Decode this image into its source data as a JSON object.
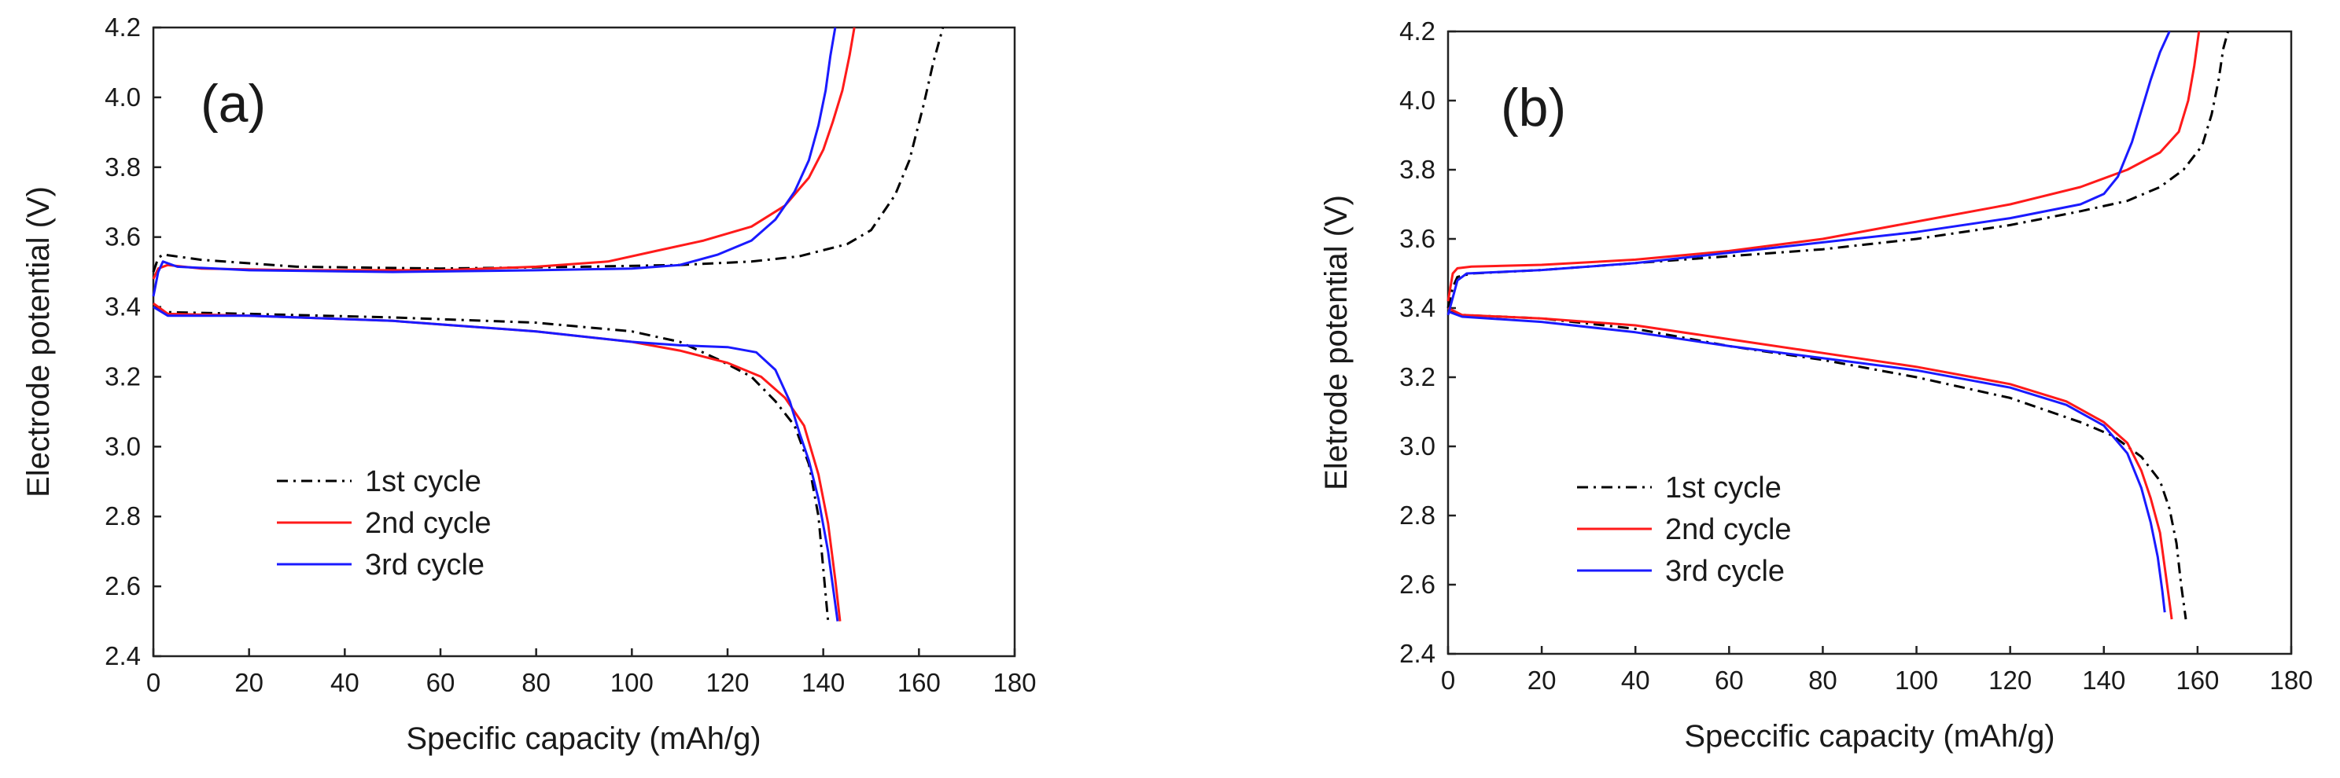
{
  "figure": {
    "description_free": true
  },
  "chart_data": [
    {
      "type": "line",
      "panel_label": "(a)",
      "title": "",
      "xlabel": "Specific capacity (mAh/g)",
      "ylabel": "Electrode potential (V)",
      "xlim": [
        0,
        180
      ],
      "ylim": [
        2.4,
        4.2
      ],
      "xticks": [
        "0",
        "20",
        "40",
        "60",
        "80",
        "100",
        "120",
        "140",
        "160",
        "180"
      ],
      "yticks": [
        "2.4",
        "2.6",
        "2.8",
        "3.0",
        "3.2",
        "3.4",
        "3.6",
        "3.8",
        "4.0",
        "4.2"
      ],
      "grid": false,
      "legend_position": "bottom-left",
      "series": [
        {
          "name": "1st cycle",
          "color": "#000000",
          "dash": "dashdot",
          "charge": [
            [
              0,
              3.5
            ],
            [
              1,
              3.54
            ],
            [
              2,
              3.55
            ],
            [
              10,
              3.535
            ],
            [
              30,
              3.515
            ],
            [
              60,
              3.51
            ],
            [
              90,
              3.515
            ],
            [
              110,
              3.52
            ],
            [
              125,
              3.53
            ],
            [
              135,
              3.545
            ],
            [
              145,
              3.58
            ],
            [
              150,
              3.62
            ],
            [
              155,
              3.72
            ],
            [
              158,
              3.82
            ],
            [
              161,
              3.98
            ],
            [
              163,
              4.1
            ],
            [
              165,
              4.2
            ]
          ],
          "discharge": [
            [
              0,
              3.4
            ],
            [
              3,
              3.385
            ],
            [
              20,
              3.38
            ],
            [
              50,
              3.37
            ],
            [
              80,
              3.355
            ],
            [
              100,
              3.33
            ],
            [
              110,
              3.3
            ],
            [
              118,
              3.25
            ],
            [
              125,
              3.2
            ],
            [
              130,
              3.13
            ],
            [
              134,
              3.06
            ],
            [
              137,
              2.95
            ],
            [
              139,
              2.8
            ],
            [
              140,
              2.65
            ],
            [
              141,
              2.5
            ]
          ]
        },
        {
          "name": "2nd cycle",
          "color": "#ff1a1a",
          "dash": "solid",
          "charge": [
            [
              0,
              3.48
            ],
            [
              1,
              3.51
            ],
            [
              3,
              3.52
            ],
            [
              10,
              3.51
            ],
            [
              30,
              3.505
            ],
            [
              60,
              3.505
            ],
            [
              80,
              3.515
            ],
            [
              95,
              3.53
            ],
            [
              105,
              3.56
            ],
            [
              115,
              3.59
            ],
            [
              125,
              3.63
            ],
            [
              132,
              3.69
            ],
            [
              137,
              3.77
            ],
            [
              140,
              3.85
            ],
            [
              142,
              3.93
            ],
            [
              144,
              4.02
            ],
            [
              145.5,
              4.12
            ],
            [
              146.5,
              4.2
            ]
          ],
          "discharge": [
            [
              0,
              3.41
            ],
            [
              3,
              3.38
            ],
            [
              20,
              3.375
            ],
            [
              50,
              3.36
            ],
            [
              80,
              3.33
            ],
            [
              100,
              3.3
            ],
            [
              110,
              3.275
            ],
            [
              120,
              3.24
            ],
            [
              127,
              3.2
            ],
            [
              132,
              3.14
            ],
            [
              136,
              3.06
            ],
            [
              139,
              2.92
            ],
            [
              141,
              2.78
            ],
            [
              142.5,
              2.62
            ],
            [
              143.5,
              2.5
            ]
          ]
        },
        {
          "name": "3rd cycle",
          "color": "#1a1aff",
          "dash": "solid",
          "charge": [
            [
              0,
              3.43
            ],
            [
              1,
              3.5
            ],
            [
              2,
              3.53
            ],
            [
              5,
              3.515
            ],
            [
              20,
              3.505
            ],
            [
              50,
              3.5
            ],
            [
              80,
              3.505
            ],
            [
              100,
              3.51
            ],
            [
              110,
              3.52
            ],
            [
              118,
              3.55
            ],
            [
              125,
              3.59
            ],
            [
              130,
              3.65
            ],
            [
              134,
              3.73
            ],
            [
              137,
              3.82
            ],
            [
              139,
              3.92
            ],
            [
              140.5,
              4.02
            ],
            [
              141.5,
              4.12
            ],
            [
              142.5,
              4.2
            ]
          ],
          "discharge": [
            [
              0,
              3.4
            ],
            [
              3,
              3.375
            ],
            [
              20,
              3.375
            ],
            [
              50,
              3.36
            ],
            [
              80,
              3.33
            ],
            [
              100,
              3.3
            ],
            [
              110,
              3.29
            ],
            [
              120,
              3.285
            ],
            [
              126,
              3.27
            ],
            [
              130,
              3.22
            ],
            [
              133,
              3.13
            ],
            [
              135,
              3.04
            ],
            [
              137,
              2.96
            ],
            [
              139,
              2.85
            ],
            [
              141,
              2.7
            ],
            [
              142.5,
              2.55
            ],
            [
              143,
              2.5
            ]
          ]
        }
      ]
    },
    {
      "type": "line",
      "panel_label": "(b)",
      "title": "",
      "xlabel": "Speccific capacity (mAh/g)",
      "ylabel": "Eletrode potential (V)",
      "xlim": [
        0,
        180
      ],
      "ylim": [
        2.4,
        4.2
      ],
      "xticks": [
        "0",
        "20",
        "40",
        "60",
        "80",
        "100",
        "120",
        "140",
        "160",
        "180"
      ],
      "yticks": [
        "2.4",
        "2.6",
        "2.8",
        "3.0",
        "3.2",
        "3.4",
        "3.6",
        "3.8",
        "4.0",
        "4.2"
      ],
      "grid": false,
      "legend_position": "bottom-left",
      "series": [
        {
          "name": "1st cycle",
          "color": "#000000",
          "dash": "dashdot",
          "charge": [
            [
              0,
              3.4
            ],
            [
              1,
              3.46
            ],
            [
              2,
              3.49
            ],
            [
              5,
              3.5
            ],
            [
              20,
              3.51
            ],
            [
              40,
              3.53
            ],
            [
              60,
              3.55
            ],
            [
              80,
              3.57
            ],
            [
              100,
              3.6
            ],
            [
              120,
              3.64
            ],
            [
              135,
              3.68
            ],
            [
              145,
              3.71
            ],
            [
              152,
              3.75
            ],
            [
              157,
              3.8
            ],
            [
              161,
              3.87
            ],
            [
              163,
              3.96
            ],
            [
              164.5,
              4.06
            ],
            [
              165.5,
              4.15
            ],
            [
              166.5,
              4.2
            ]
          ],
          "discharge": [
            [
              0,
              3.39
            ],
            [
              3,
              3.38
            ],
            [
              20,
              3.37
            ],
            [
              40,
              3.34
            ],
            [
              60,
              3.29
            ],
            [
              80,
              3.25
            ],
            [
              100,
              3.2
            ],
            [
              120,
              3.14
            ],
            [
              135,
              3.07
            ],
            [
              142,
              3.03
            ],
            [
              148,
              2.97
            ],
            [
              152,
              2.9
            ],
            [
              154,
              2.82
            ],
            [
              155.5,
              2.72
            ],
            [
              156.5,
              2.6
            ],
            [
              157.5,
              2.5
            ]
          ]
        },
        {
          "name": "2nd cycle",
          "color": "#ff1a1a",
          "dash": "solid",
          "charge": [
            [
              0,
              3.42
            ],
            [
              1,
              3.5
            ],
            [
              2,
              3.515
            ],
            [
              5,
              3.52
            ],
            [
              20,
              3.525
            ],
            [
              40,
              3.54
            ],
            [
              60,
              3.565
            ],
            [
              80,
              3.6
            ],
            [
              100,
              3.65
            ],
            [
              120,
              3.7
            ],
            [
              135,
              3.75
            ],
            [
              145,
              3.8
            ],
            [
              152,
              3.85
            ],
            [
              156,
              3.91
            ],
            [
              158,
              4.0
            ],
            [
              159.3,
              4.1
            ],
            [
              160.3,
              4.2
            ]
          ],
          "discharge": [
            [
              0,
              3.4
            ],
            [
              3,
              3.38
            ],
            [
              20,
              3.37
            ],
            [
              40,
              3.35
            ],
            [
              60,
              3.31
            ],
            [
              80,
              3.27
            ],
            [
              100,
              3.23
            ],
            [
              120,
              3.18
            ],
            [
              132,
              3.13
            ],
            [
              140,
              3.07
            ],
            [
              145,
              3.01
            ],
            [
              148,
              2.93
            ],
            [
              150,
              2.85
            ],
            [
              152,
              2.75
            ],
            [
              153,
              2.65
            ],
            [
              154,
              2.55
            ],
            [
              154.5,
              2.5
            ]
          ]
        },
        {
          "name": "3rd cycle",
          "color": "#1a1aff",
          "dash": "solid",
          "charge": [
            [
              0,
              3.38
            ],
            [
              1,
              3.43
            ],
            [
              2,
              3.48
            ],
            [
              4,
              3.5
            ],
            [
              20,
              3.51
            ],
            [
              40,
              3.53
            ],
            [
              60,
              3.56
            ],
            [
              80,
              3.59
            ],
            [
              100,
              3.62
            ],
            [
              120,
              3.66
            ],
            [
              135,
              3.7
            ],
            [
              140,
              3.73
            ],
            [
              143,
              3.78
            ],
            [
              146,
              3.88
            ],
            [
              148,
              3.97
            ],
            [
              150,
              4.06
            ],
            [
              152,
              4.14
            ],
            [
              154,
              4.2
            ]
          ],
          "discharge": [
            [
              0,
              3.39
            ],
            [
              3,
              3.375
            ],
            [
              20,
              3.36
            ],
            [
              40,
              3.33
            ],
            [
              60,
              3.29
            ],
            [
              80,
              3.255
            ],
            [
              100,
              3.22
            ],
            [
              120,
              3.17
            ],
            [
              132,
              3.12
            ],
            [
              140,
              3.06
            ],
            [
              145,
              2.98
            ],
            [
              148,
              2.88
            ],
            [
              150,
              2.78
            ],
            [
              151.5,
              2.68
            ],
            [
              152.5,
              2.58
            ],
            [
              153,
              2.52
            ]
          ]
        }
      ]
    }
  ]
}
